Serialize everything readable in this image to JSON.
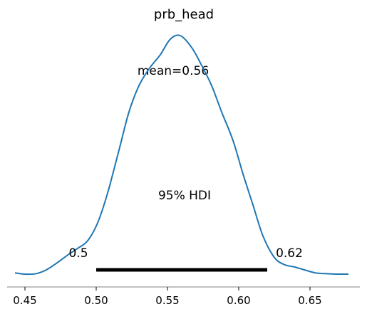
{
  "chart_data": {
    "type": "line",
    "title": "prb_head",
    "mean_label": "mean=0.56",
    "hdi_label": "95% HDI",
    "hdi": {
      "low": 0.5,
      "high": 0.62,
      "low_label": "0.5",
      "high_label": "0.62"
    },
    "xlim": [
      0.4375,
      0.685
    ],
    "ylim": [
      0,
      1
    ],
    "x_ticks": [
      0.45,
      0.5,
      0.55,
      0.6,
      0.65
    ],
    "x_tick_labels": [
      "0.45",
      "0.50",
      "0.55",
      "0.60",
      "0.65"
    ],
    "series": [
      {
        "color": "#1f77b4",
        "x": [
          0.443,
          0.45,
          0.458,
          0.465,
          0.472,
          0.48,
          0.487,
          0.494,
          0.501,
          0.508,
          0.516,
          0.523,
          0.53,
          0.537,
          0.545,
          0.552,
          0.559,
          0.567,
          0.574,
          0.581,
          0.588,
          0.596,
          0.603,
          0.61,
          0.617,
          0.625,
          0.632,
          0.639,
          0.646,
          0.654,
          0.661,
          0.668,
          0.677
        ],
        "y": [
          0.005,
          0.0,
          0.002,
          0.018,
          0.045,
          0.08,
          0.108,
          0.14,
          0.215,
          0.34,
          0.52,
          0.68,
          0.79,
          0.86,
          0.92,
          0.985,
          1.0,
          0.95,
          0.875,
          0.79,
          0.68,
          0.56,
          0.42,
          0.29,
          0.16,
          0.07,
          0.04,
          0.03,
          0.018,
          0.005,
          0.002,
          0.0,
          0.0
        ]
      }
    ],
    "colors": {
      "line": "#1f77b4",
      "hdi_bar": "#000000",
      "axis": "#808080"
    }
  }
}
